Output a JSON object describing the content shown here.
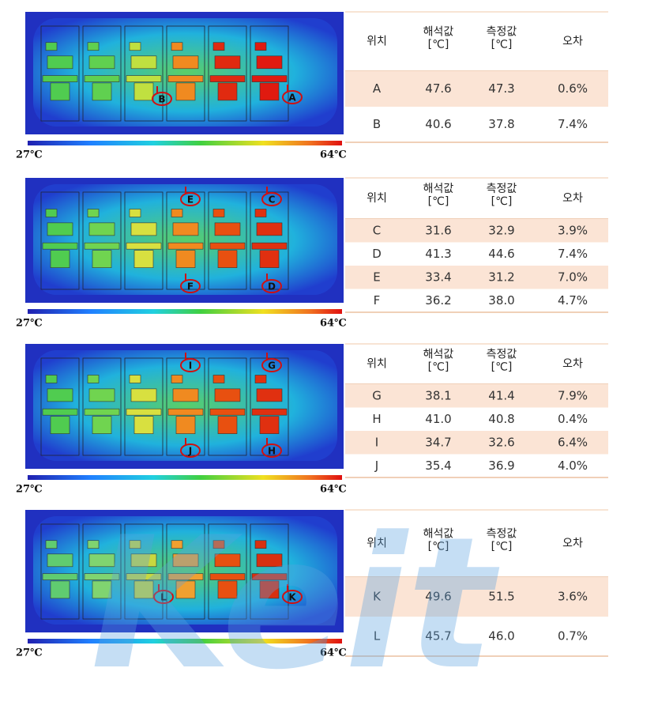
{
  "panels": [
    {
      "markers": [
        "B",
        "A"
      ],
      "scale_min": "27℃",
      "scale_max": "64℃",
      "table": {
        "header": [
          [
            "위치"
          ],
          [
            "해석값",
            "[℃]"
          ],
          [
            "측정값",
            "[℃]"
          ],
          [
            "오차"
          ]
        ],
        "rows": [
          [
            "A",
            "47.6",
            "47.3",
            "0.6%"
          ],
          [
            "B",
            "40.6",
            "37.8",
            "7.4%"
          ]
        ]
      }
    },
    {
      "markers": [
        "E",
        "C",
        "F",
        "D"
      ],
      "scale_min": "27℃",
      "scale_max": "64℃",
      "table": {
        "header": [
          [
            "위치"
          ],
          [
            "해석값",
            "[℃]"
          ],
          [
            "측정값",
            "[℃]"
          ],
          [
            "오차"
          ]
        ],
        "rows": [
          [
            "C",
            "31.6",
            "32.9",
            "3.9%"
          ],
          [
            "D",
            "41.3",
            "44.6",
            "7.4%"
          ],
          [
            "E",
            "33.4",
            "31.2",
            "7.0%"
          ],
          [
            "F",
            "36.2",
            "38.0",
            "4.7%"
          ]
        ]
      }
    },
    {
      "markers": [
        "I",
        "G",
        "J",
        "H"
      ],
      "scale_min": "27℃",
      "scale_max": "64℃",
      "table": {
        "header": [
          [
            "위치"
          ],
          [
            "해석값",
            "[℃]"
          ],
          [
            "측정값",
            "[℃]"
          ],
          [
            "오차"
          ]
        ],
        "rows": [
          [
            "G",
            "38.1",
            "41.4",
            "7.9%"
          ],
          [
            "H",
            "41.0",
            "40.8",
            "0.4%"
          ],
          [
            "I",
            "34.7",
            "32.6",
            "6.4%"
          ],
          [
            "J",
            "35.4",
            "36.9",
            "4.0%"
          ]
        ]
      }
    },
    {
      "markers": [
        "L",
        "K"
      ],
      "scale_min": "27℃",
      "scale_max": "64℃",
      "table": {
        "header": [
          [
            "위치"
          ],
          [
            "해석값",
            "[℃]"
          ],
          [
            "측정값",
            "[℃]"
          ],
          [
            "오차"
          ]
        ],
        "rows": [
          [
            "K",
            "49.6",
            "51.5",
            "3.6%"
          ],
          [
            "L",
            "45.7",
            "46.0",
            "0.7%"
          ]
        ]
      }
    }
  ],
  "watermark": "Keit"
}
